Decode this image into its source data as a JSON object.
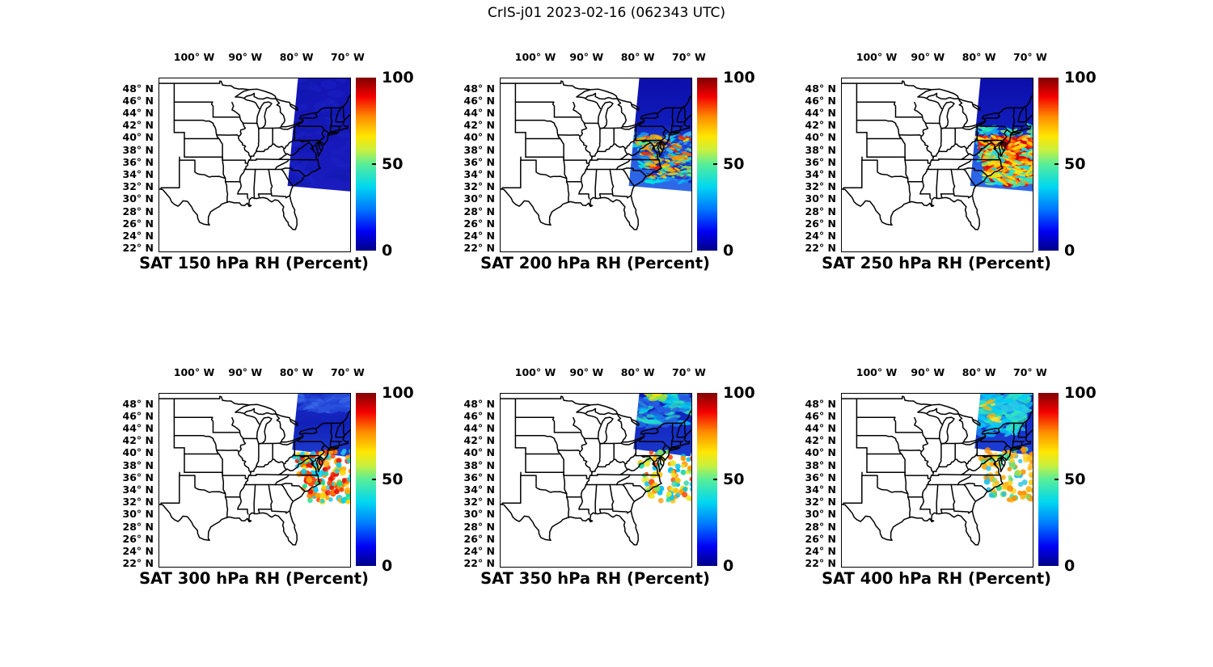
{
  "chart_data": {
    "type": "heatmap",
    "title": "CrIS-j01 2023-02-16 (062343 UTC)",
    "satellite": "CrIS-j01",
    "date": "2023-02-16",
    "time_utc": "062343",
    "variable": "Relative Humidity (Percent)",
    "panel_grid": [
      2,
      3
    ],
    "legend_position": "right of each panel",
    "grid": "off",
    "colorbar": {
      "range": [
        0,
        100
      ],
      "max_label": "100",
      "mid_label": "50",
      "min_label": "0",
      "colormap": "jet",
      "jet_stops": [
        [
          "0",
          "#000087"
        ],
        [
          "0.11",
          "#0000f3"
        ],
        [
          "0.24",
          "#0077ff"
        ],
        [
          "0.37",
          "#00d8f0"
        ],
        [
          "0.50",
          "#58ee98"
        ],
        [
          "0.58",
          "#c8f040"
        ],
        [
          "0.66",
          "#ffe602"
        ],
        [
          "0.77",
          "#ff9000"
        ],
        [
          "0.89",
          "#f40000"
        ],
        [
          "1",
          "#7f0000"
        ]
      ]
    },
    "axes": {
      "lon_labels": [
        "100° W",
        "90° W",
        "80° W",
        "70° W"
      ],
      "lon_values_deg_w": [
        100,
        90,
        80,
        70
      ],
      "lat_labels": [
        "48° N",
        "46° N",
        "44° N",
        "42° N",
        "40° N",
        "38° N",
        "36° N",
        "34° N",
        "32° N",
        "30° N",
        "28° N",
        "26° N",
        "24° N",
        "22° N"
      ],
      "lat_values_deg_n": [
        48,
        46,
        44,
        42,
        40,
        38,
        36,
        34,
        32,
        30,
        28,
        26,
        24,
        22
      ],
      "lon_range_deg_w": [
        106.95,
        69.67
      ],
      "lat_range_deg_n": [
        21.6,
        49.8
      ]
    },
    "panels": [
      {
        "level_hPa": 150,
        "title": "SAT 150 hPa RH (Percent)",
        "summary": "Satellite swath over the NE US / western Atlantic (~82W-70W, 32N-50N); RH uniformly ~0-5% (solid dark blue).",
        "render": {
          "swath": [
            [
              -79.8,
              50.3
            ],
            [
              -66.6,
              50.3
            ],
            [
              -69.5,
              31.4
            ],
            [
              -81.9,
              32.3
            ]
          ],
          "base_stops": [
            [
              "0",
              "#1414b4"
            ],
            [
              "1",
              "#1a1cbe"
            ]
          ],
          "groups": [
            {
              "seed": 5,
              "count": 60,
              "lat": [
                49.8,
                32.5
              ],
              "lonMin": [
                -80.0,
                -81.8
              ],
              "lonMax": [
                -69.5,
                -69.5
              ],
              "r": [
                3,
                7
              ],
              "shape": "smear",
              "colors": [
                "#101aae",
                "#1a22c4"
              ],
              "op": 0.6
            }
          ]
        }
      },
      {
        "level_hPa": 200,
        "title": "SAT 200 hPa RH (Percent)",
        "summary": "RH 0-10% north of ~41N (dark blue); turbulent pockets 30-90% (cyan/yellow/orange/red swirls) 33-40N over VA/NC coast and offshore; 15-30% (medium blue) in southern swath.",
        "render": {
          "swath": [
            [
              -79.8,
              50.3
            ],
            [
              -66.6,
              50.3
            ],
            [
              -69.5,
              31.4
            ],
            [
              -81.9,
              32.3
            ]
          ],
          "base_stops": [
            [
              "0",
              "#0d0daa"
            ],
            [
              "0.42",
              "#101cba"
            ],
            [
              "0.58",
              "#1e46d2"
            ],
            [
              "0.8",
              "#2a62e4"
            ],
            [
              "1",
              "#2f6ae8"
            ]
          ],
          "groups": [
            {
              "seed": 11,
              "count": 150,
              "lat": [
                40.8,
                32.9
              ],
              "lonMin": [
                -80.9,
                -78.6
              ],
              "lonMax": [
                -69.4,
                -69.4
              ],
              "r": [
                1.6,
                3.6
              ],
              "shape": "smear",
              "colors": [
                "#1f8ef0",
                "#00c8f8",
                "#00e8d8",
                "#49b9f5",
                "#0aa6e8"
              ],
              "op": 0.92
            },
            {
              "seed": 14,
              "count": 60,
              "lat": [
                41.3,
                33.0
              ],
              "lonMin": [
                -80.9,
                -78.4
              ],
              "lonMax": [
                -69.4,
                -69.4
              ],
              "r": [
                1.5,
                3.5
              ],
              "shape": "smear",
              "colors": [
                "#1430c8",
                "#0d18b0"
              ],
              "op": 0.85
            },
            {
              "seed": 12,
              "count": 85,
              "lat": [
                40.3,
                33.6
              ],
              "lonMin": [
                -80.6,
                -78.0
              ],
              "lonMax": [
                -69.5,
                -69.5
              ],
              "r": [
                1.4,
                3.0
              ],
              "shape": "smear",
              "colors": [
                "#ffdf00",
                "#ff9800",
                "#ff5a00",
                "#e82000",
                "#ffb400"
              ],
              "op": 0.95
            },
            {
              "seed": 13,
              "count": 35,
              "lat": [
                40.0,
                33.5
              ],
              "lonMin": [
                -80.4,
                -78.0
              ],
              "lonMax": [
                -69.6,
                -69.6
              ],
              "r": [
                1.2,
                2.4
              ],
              "shape": "smear",
              "colors": [
                "#8ce85a",
                "#3ee8a0"
              ],
              "op": 0.9
            }
          ]
        }
      },
      {
        "level_hPa": 250,
        "title": "SAT 250 hPa RH (Percent)",
        "summary": "RH 0-10% north of ~42N; widespread 70-100% (large red blobs) 33-38N offshore of the Carolinas/Virginia with mixed 30-60% cyan/yellow turbulence 36-42N.",
        "render": {
          "swath": [
            [
              -79.8,
              50.3
            ],
            [
              -66.6,
              50.3
            ],
            [
              -69.5,
              31.4
            ],
            [
              -81.9,
              32.3
            ]
          ],
          "base_stops": [
            [
              "0",
              "#0d0daa"
            ],
            [
              "0.42",
              "#101cba"
            ],
            [
              "0.58",
              "#1e46d2"
            ],
            [
              "0.8",
              "#2a62e4"
            ],
            [
              "1",
              "#2f6ae8"
            ]
          ],
          "groups": [
            {
              "seed": 21,
              "count": 170,
              "lat": [
                41.8,
                32.5
              ],
              "lonMin": [
                -81.0,
                -78.2
              ],
              "lonMax": [
                -69.4,
                -69.4
              ],
              "r": [
                2,
                4.2
              ],
              "shape": "smear",
              "colors": [
                "#00d2f8",
                "#2ae8c0",
                "#7fe868",
                "#19a8f0"
              ],
              "op": 0.95
            },
            {
              "seed": 22,
              "count": 210,
              "lat": [
                40.2,
                32.8
              ],
              "lonMin": [
                -80.3,
                -77.8
              ],
              "lonMax": [
                -69.4,
                -69.4
              ],
              "r": [
                2.6,
                6.5
              ],
              "shape": "dot",
              "colors": [
                "#e01000",
                "#d40000",
                "#ff3a00",
                "#c00000"
              ],
              "op": 0.96
            },
            {
              "seed": 23,
              "count": 110,
              "lat": [
                40.4,
                32.8
              ],
              "lonMin": [
                -80.3,
                -77.8
              ],
              "lonMax": [
                -69.4,
                -69.4
              ],
              "r": [
                1.8,
                3.6
              ],
              "shape": "smear",
              "colors": [
                "#ffd800",
                "#ff9000",
                "#ffe83c"
              ],
              "op": 0.95
            },
            {
              "seed": 24,
              "count": 70,
              "lat": [
                38.8,
                32.6
              ],
              "lonMin": [
                -79.5,
                -77.6
              ],
              "lonMax": [
                -69.4,
                -69.4
              ],
              "r": [
                1.5,
                3.2
              ],
              "shape": "smear",
              "colors": [
                "#00e0ff",
                "#36e8b4",
                "#ffe800"
              ],
              "op": 0.9
            }
          ]
        }
      },
      {
        "level_hPa": 300,
        "title": "SAT 300 hPa RH (Percent)",
        "summary": "RH 5-20% (blue) north of ~40N; discrete field-of-view dots 30-95% (red/orange/yellow/cyan) between 32-40N; no retrievals south of ~32N.",
        "render": {
          "swath": [
            [
              -79.8,
              50.3
            ],
            [
              -66.6,
              50.3
            ],
            [
              -69.5,
              31.4
            ],
            [
              -81.9,
              32.3
            ]
          ],
          "solid": [
            [
              -79.8,
              50.3
            ],
            [
              -66.6,
              50.3
            ],
            [
              -69.9,
              39.5
            ],
            [
              -81.0,
              40.7
            ]
          ],
          "base_stops": [
            [
              "0",
              "#1a2cc8"
            ],
            [
              "0.5",
              "#1120b8"
            ],
            [
              "1",
              "#1e3ed0"
            ]
          ],
          "groups": [
            {
              "seed": 31,
              "count": 45,
              "lat": [
                49.9,
                47.0
              ],
              "lonMin": [
                -79.8,
                -80.2
              ],
              "lonMax": [
                -69.4,
                -69.4
              ],
              "r": [
                2.5,
                6
              ],
              "shape": "smear",
              "colors": [
                "#2a52de",
                "#2144d4",
                "#3a6ae8"
              ],
              "op": 0.8
            },
            {
              "seed": 32,
              "count": 155,
              "lat": [
                40.6,
                32.2
              ],
              "lonMin": [
                -81.0,
                -78.2
              ],
              "lonMax": [
                -69.4,
                -69.4
              ],
              "r": [
                2.7,
                4.3
              ],
              "shape": "dot",
              "colors": [
                "#e81400",
                "#ff7800",
                "#ffd200",
                "#00d2f8",
                "#12e091",
                "#ff3c00",
                "#ffa800",
                "#22c8f0"
              ],
              "op": 0.97
            }
          ]
        }
      },
      {
        "level_hPa": 350,
        "title": "SAT 350 hPa RH (Percent)",
        "summary": "Blue (10-30%) north with cyan/green streaks and a yellow-green patch near 49N; sparser dots 30-90% (orange/red/green/cyan) 32-40N; no retrievals south of ~32N.",
        "render": {
          "swath": [
            [
              -79.8,
              50.3
            ],
            [
              -66.6,
              50.3
            ],
            [
              -69.5,
              31.4
            ],
            [
              -81.9,
              32.3
            ]
          ],
          "solid": [
            [
              -79.8,
              50.3
            ],
            [
              -66.6,
              50.3
            ],
            [
              -69.9,
              39.6
            ],
            [
              -81.0,
              40.8
            ]
          ],
          "base_stops": [
            [
              "0",
              "#0f1ab6"
            ],
            [
              "1",
              "#1a38cc"
            ]
          ],
          "groups": [
            {
              "seed": 41,
              "count": 80,
              "lat": [
                49.9,
                44.8
              ],
              "lonMin": [
                -79.85,
                -80.6
              ],
              "lonMax": [
                -69.4,
                -69.4
              ],
              "r": [
                2.2,
                5.5
              ],
              "shape": "smear",
              "colors": [
                "#00c4f0",
                "#28e0c4",
                "#1e6ee8",
                "#2858e0"
              ],
              "op": 0.85
            },
            {
              "seed": 42,
              "count": 14,
              "lat": [
                50.0,
                48.9
              ],
              "lonMin": [
                -78.6,
                -78.9
              ],
              "lonMax": [
                -74.8,
                -74.8
              ],
              "r": [
                2.5,
                4.5
              ],
              "shape": "smear",
              "colors": [
                "#c2e838",
                "#7fe050",
                "#ffd800"
              ],
              "op": 0.9
            },
            {
              "seed": 43,
              "count": 92,
              "lat": [
                40.4,
                32.4
              ],
              "lonMin": [
                -80.9,
                -78.0
              ],
              "lonMax": [
                -69.4,
                -69.4
              ],
              "r": [
                2.6,
                4.0
              ],
              "shape": "dot",
              "colors": [
                "#ff9800",
                "#ff4200",
                "#ffc400",
                "#7fe358",
                "#2ad8a8",
                "#00bff0",
                "#e8e82a"
              ],
              "op": 0.97
            }
          ]
        }
      },
      {
        "level_hPa": 400,
        "title": "SAT 400 hPa RH (Percent)",
        "summary": "Blue north with strong cyan/green streaks (20-45%) over the western swath 43-50N and small orange patches; orange-dominant dots 50-75% with green/cyan 32-40N; no retrievals south of ~32N.",
        "render": {
          "swath": [
            [
              -79.8,
              50.3
            ],
            [
              -66.6,
              50.3
            ],
            [
              -69.5,
              31.4
            ],
            [
              -81.9,
              32.3
            ]
          ],
          "solid": [
            [
              -79.8,
              50.3
            ],
            [
              -66.6,
              50.3
            ],
            [
              -69.9,
              39.8
            ],
            [
              -81.0,
              40.9
            ]
          ],
          "base_stops": [
            [
              "0",
              "#101cc0"
            ],
            [
              "1",
              "#1c40d4"
            ]
          ],
          "groups": [
            {
              "seed": 51,
              "count": 120,
              "lat": [
                49.9,
                43.2
              ],
              "lonMin": [
                -79.9,
                -80.9
              ],
              "lonMax": [
                -70.5,
                -73.0
              ],
              "r": [
                2.4,
                6
              ],
              "shape": "smear",
              "colors": [
                "#00ccf8",
                "#30e8b8",
                "#1890f0",
                "#28c8e8"
              ],
              "op": 0.85
            },
            {
              "seed": 52,
              "count": 9,
              "lat": [
                48.6,
                45.2
              ],
              "lonMin": [
                -79.6,
                -79.0
              ],
              "lonMax": [
                -76.2,
                -76.2
              ],
              "r": [
                2,
                3.4
              ],
              "shape": "smear",
              "colors": [
                "#ffb400",
                "#ffe030"
              ],
              "op": 0.9
            },
            {
              "seed": 53,
              "count": 112,
              "lat": [
                40.8,
                32.4
              ],
              "lonMin": [
                -80.7,
                -77.8
              ],
              "lonMax": [
                -69.4,
                -69.4
              ],
              "r": [
                2.6,
                4.1
              ],
              "shape": "dot",
              "colors": [
                "#ffa400",
                "#ffb81e",
                "#36d890",
                "#22c0e8",
                "#7fdf60",
                "#ffd21e",
                "#ff9000"
              ],
              "op": 0.97
            }
          ]
        }
      }
    ]
  }
}
